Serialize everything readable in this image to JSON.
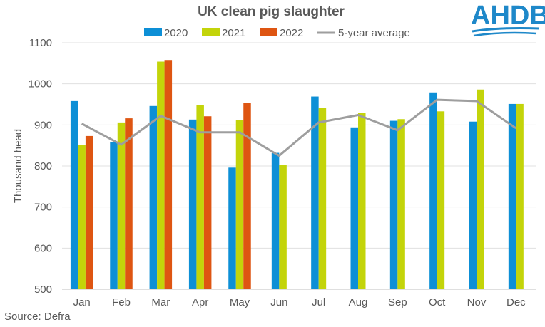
{
  "colors": {
    "2020": "#0d8fd6",
    "2021": "#c3d40a",
    "2022": "#de5512",
    "average": "#9e9e9e",
    "text": "#595959",
    "grid": "#e0e0e0",
    "brand": "#1e88c9"
  },
  "brand": {
    "name": "AHDB"
  },
  "source": "Source: Defra",
  "chart_data": {
    "type": "bar",
    "title": "UK clean pig slaughter",
    "ylabel": "Thousand head",
    "xlabel": "",
    "ylim": [
      500,
      1100
    ],
    "yticks": [
      500,
      600,
      700,
      800,
      900,
      1000,
      1100
    ],
    "grid": true,
    "legend_position": "top",
    "categories": [
      "Jan",
      "Feb",
      "Mar",
      "Apr",
      "May",
      "Jun",
      "Jul",
      "Aug",
      "Sep",
      "Oct",
      "Nov",
      "Dec"
    ],
    "series": [
      {
        "name": "2020",
        "type": "bar",
        "color": "#0d8fd6",
        "values": [
          958,
          859,
          946,
          913,
          796,
          832,
          969,
          894,
          910,
          979,
          908,
          951
        ]
      },
      {
        "name": "2021",
        "type": "bar",
        "color": "#c3d40a",
        "values": [
          852,
          906,
          1054,
          948,
          911,
          803,
          941,
          929,
          914,
          933,
          986,
          951
        ]
      },
      {
        "name": "2022",
        "type": "bar",
        "color": "#de5512",
        "values": [
          873,
          916,
          1058,
          921,
          953,
          null,
          null,
          null,
          null,
          null,
          null,
          null
        ]
      },
      {
        "name": "5-year average",
        "type": "line",
        "color": "#9e9e9e",
        "values": [
          903,
          852,
          922,
          882,
          882,
          825,
          906,
          924,
          887,
          961,
          958,
          892
        ]
      }
    ]
  }
}
